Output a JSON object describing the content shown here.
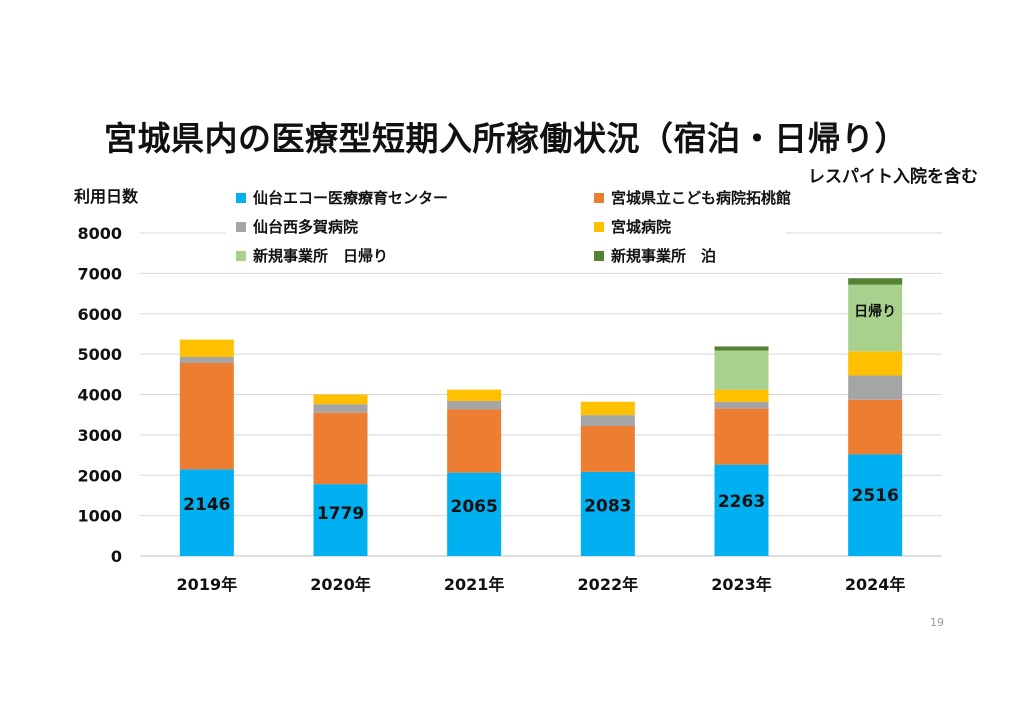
{
  "page_number": "19",
  "chart_data": {
    "type": "bar",
    "stacked": true,
    "title": "宮城県内の医療型短期入所稼働状況（宿泊・日帰り）",
    "subtitle": "レスパイト入院を含む",
    "ylabel": "利用日数",
    "xlabel": "",
    "ylim": [
      0,
      8000
    ],
    "yticks": [
      0,
      1000,
      2000,
      3000,
      4000,
      5000,
      6000,
      7000,
      8000
    ],
    "grid": true,
    "legend_position": "top",
    "categories": [
      "2019年",
      "2020年",
      "2021年",
      "2022年",
      "2023年",
      "2024年"
    ],
    "series": [
      {
        "name": "仙台エコー医療療育センター",
        "color": "#00B0F0",
        "values": [
          2146,
          1779,
          2065,
          2083,
          2263,
          2516
        ]
      },
      {
        "name": "宮城県立こども病院拓桃館",
        "color": "#ED7D31",
        "values": [
          2634,
          1771,
          1565,
          1137,
          1387,
          1354
        ]
      },
      {
        "name": "仙台西多賀病院",
        "color": "#A5A5A5",
        "values": [
          150,
          210,
          210,
          270,
          170,
          600
        ]
      },
      {
        "name": "宮城病院",
        "color": "#FFC000",
        "values": [
          430,
          240,
          280,
          330,
          300,
          600
        ]
      },
      {
        "name": "新規事業所　日帰り",
        "color": "#A9D18E",
        "values": [
          0,
          0,
          0,
          0,
          970,
          1650
        ]
      },
      {
        "name": "新規事業所　泊",
        "color": "#548235",
        "values": [
          0,
          0,
          0,
          0,
          100,
          160
        ]
      }
    ],
    "data_labels": [
      "2146",
      "1779",
      "2065",
      "2083",
      "2263",
      "2516"
    ],
    "annotations": [
      {
        "category": "2024年",
        "series": "新規事業所　日帰り",
        "text": "日帰り"
      }
    ]
  }
}
